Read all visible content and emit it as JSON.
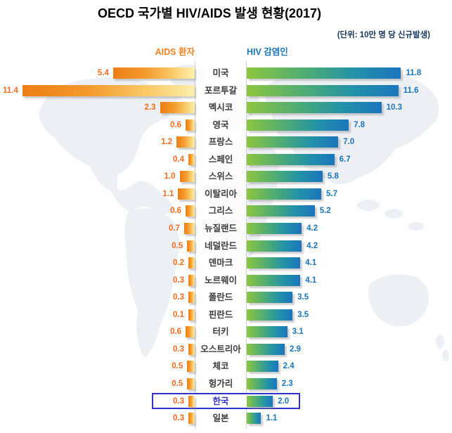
{
  "title": "OECD 국가별 HIV/AIDS 발생 현황(2017)",
  "unit_note": "(단위: 10만 명 당 신규발생)",
  "legend": {
    "aids_label": "AIDS 환자",
    "hiv_label": "HIV 감염인"
  },
  "colors": {
    "title": "#000000",
    "unit_note": "#17375e",
    "aids_accent": "#f26b21",
    "hiv_accent": "#1b75bc",
    "aids_bar_gradient": [
      "#ec7d17",
      "#f49b2f",
      "#f9c966",
      "#fdf0ac"
    ],
    "hiv_bar_gradient": [
      "#8dc63f",
      "#48a97a",
      "#2392a8",
      "#1b75bc"
    ],
    "highlight_border": "#3333cc",
    "country_label": "#3b3b3b",
    "axis_line": "#c9cdd4",
    "map_watermark": "#eceff4"
  },
  "chart_data": {
    "type": "bar",
    "orientation": "horizontal-diverging",
    "title": "OECD 국가별 HIV/AIDS 발생 현황(2017)",
    "unit": "10만 명 당 신규발생",
    "legend_position": "top",
    "grid": false,
    "categories": [
      "미국",
      "포르투갈",
      "멕시코",
      "영국",
      "프랑스",
      "스페인",
      "스위스",
      "이탈리아",
      "그리스",
      "뉴질랜드",
      "네덜란드",
      "덴마크",
      "노르웨이",
      "폴란드",
      "핀란드",
      "터키",
      "오스트리아",
      "체코",
      "헝가리",
      "한국",
      "일본"
    ],
    "series": [
      {
        "name": "AIDS 환자",
        "side": "left",
        "values": [
          5.4,
          11.4,
          2.3,
          0.6,
          1.2,
          0.4,
          1.0,
          1.1,
          0.6,
          0.7,
          0.5,
          0.2,
          0.3,
          0.3,
          0.1,
          0.6,
          0.3,
          0.5,
          0.5,
          0.3,
          0.3
        ]
      },
      {
        "name": "HIV 감염인",
        "side": "right",
        "values": [
          11.8,
          11.6,
          10.3,
          7.8,
          7.0,
          6.7,
          5.8,
          5.7,
          5.2,
          4.2,
          4.2,
          4.1,
          4.1,
          3.5,
          3.5,
          3.1,
          2.9,
          2.4,
          2.3,
          2.0,
          1.1
        ]
      }
    ],
    "value_format": "one-decimal",
    "highlighted_category": "한국",
    "left_axis_max": 11.4,
    "right_axis_max": 11.8
  }
}
